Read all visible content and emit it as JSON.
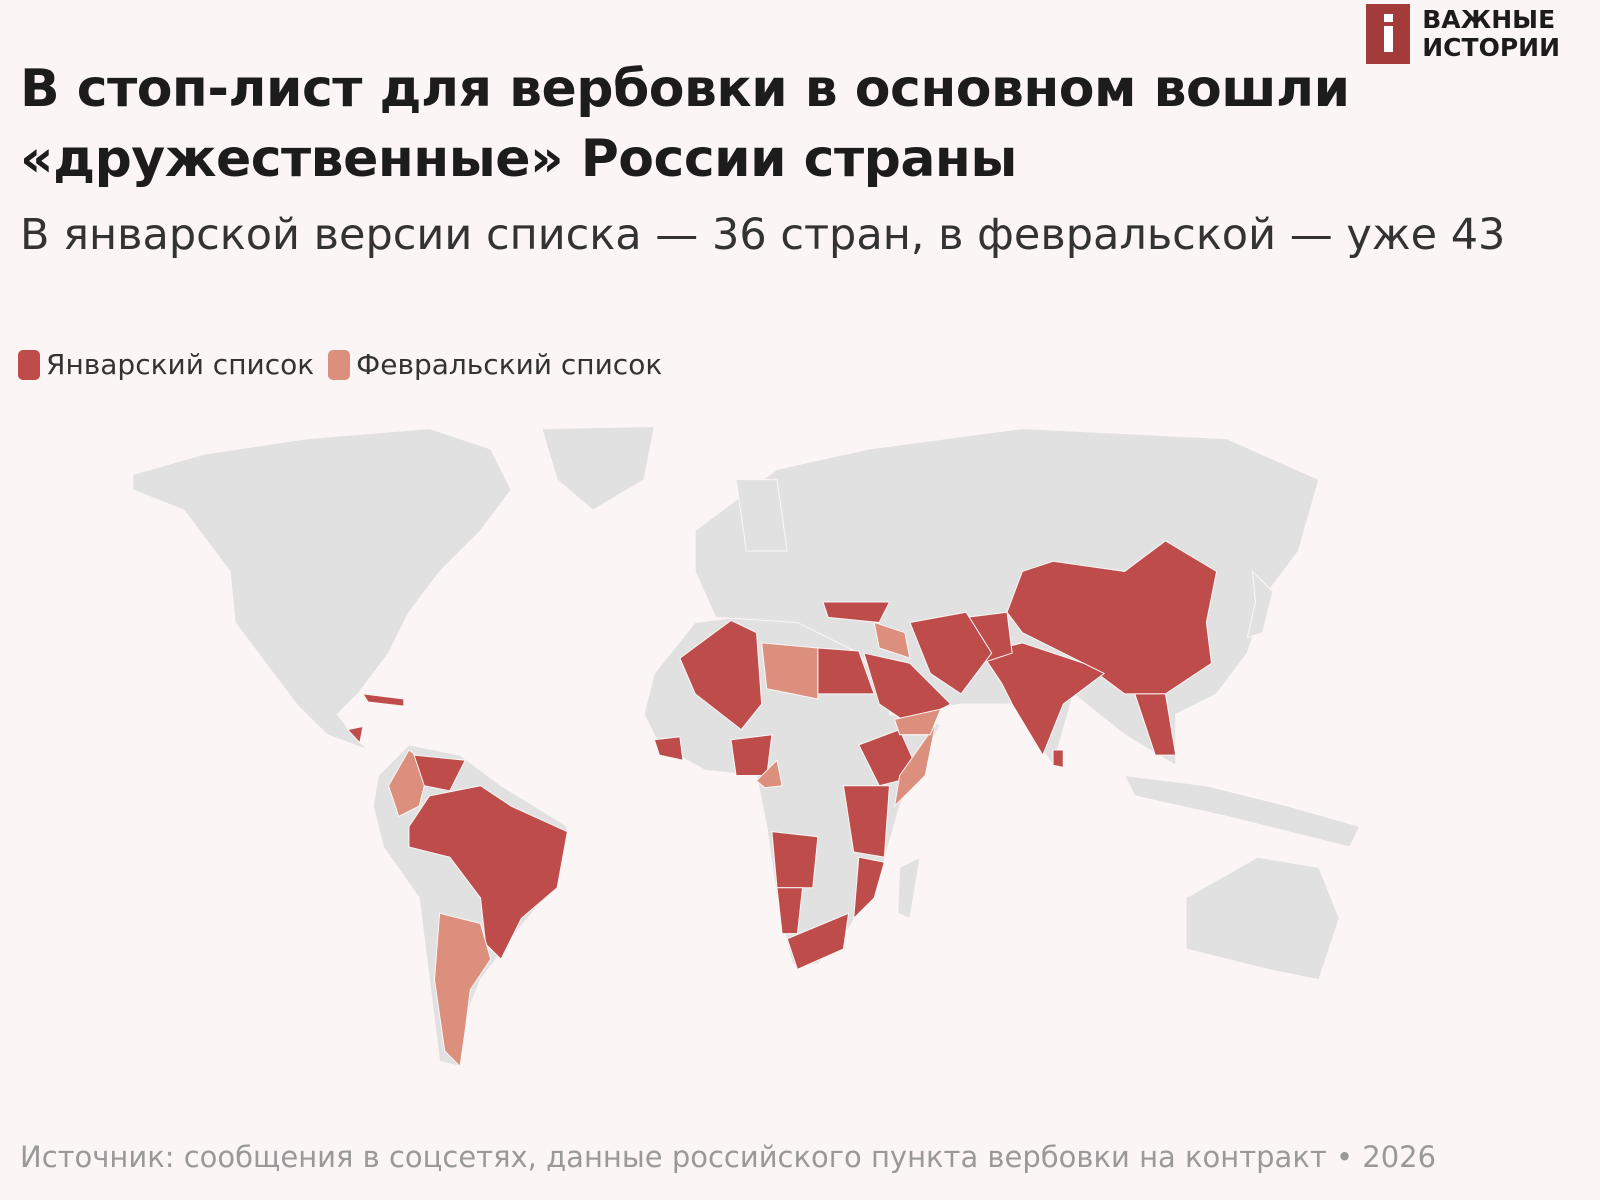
{
  "logo": {
    "lines": [
      "ВАЖНЫЕ",
      "ИСТОРИИ"
    ]
  },
  "header": {
    "title": "В стоп-лист для вербовки в основном вошли «дружественные» России страны",
    "subtitle": "В январской версии списка — 36 стран, в февральской — уже 43"
  },
  "legend": [
    {
      "name": "Январский список",
      "color": "#bd4c4a"
    },
    {
      "name": "Февральский список",
      "color": "#db8f7c"
    }
  ],
  "land_color": "#e1e1e2",
  "source": "Источник: сообщения в соцсетях, данные российского пункта вербовки на контракт • 2026"
}
